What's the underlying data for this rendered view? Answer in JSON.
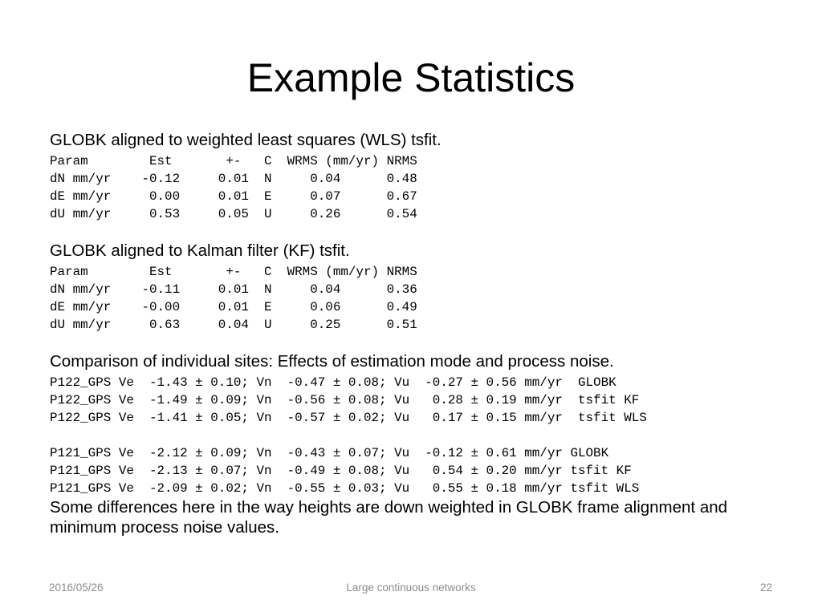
{
  "slide": {
    "title": "Example Statistics",
    "sections": {
      "wls": {
        "heading": "GLOBK aligned to weighted least squares (WLS) tsfit.",
        "table": "Param        Est       +-   C  WRMS (mm/yr) NRMS\ndN mm/yr    -0.12     0.01  N     0.04      0.48\ndE mm/yr     0.00     0.01  E     0.07      0.67\ndU mm/yr     0.53     0.05  U     0.26      0.54"
      },
      "kf": {
        "heading": "GLOBK aligned to Kalman filter (KF) tsfit.",
        "table": "Param        Est       +-   C  WRMS (mm/yr) NRMS\ndN mm/yr    -0.11     0.01  N     0.04      0.36\ndE mm/yr    -0.00     0.01  E     0.06      0.49\ndU mm/yr     0.63     0.04  U     0.25      0.51"
      },
      "comparison": {
        "heading": "Comparison of individual sites: Effects of estimation mode and process noise.",
        "p122": "P122_GPS Ve  -1.43 ± 0.10; Vn  -0.47 ± 0.08; Vu  -0.27 ± 0.56 mm/yr  GLOBK\nP122_GPS Ve  -1.49 ± 0.09; Vn  -0.56 ± 0.08; Vu   0.28 ± 0.19 mm/yr  tsfit KF\nP122_GPS Ve  -1.41 ± 0.05; Vn  -0.57 ± 0.02; Vu   0.17 ± 0.15 mm/yr  tsfit WLS",
        "p121": "P121_GPS Ve  -2.12 ± 0.09; Vn  -0.43 ± 0.07; Vu  -0.12 ± 0.61 mm/yr GLOBK\nP121_GPS Ve  -2.13 ± 0.07; Vn  -0.49 ± 0.08; Vu   0.54 ± 0.20 mm/yr tsfit KF\nP121_GPS Ve  -2.09 ± 0.02; Vn  -0.55 ± 0.03; Vu   0.55 ± 0.18 mm/yr tsfit WLS",
        "note": "Some differences here in the way heights are down weighted in GLOBK frame alignment and minimum process noise values."
      }
    }
  },
  "footer": {
    "date": "2016/05/26",
    "center": "Large continuous networks",
    "page": "22"
  },
  "colors": {
    "text": "#000000",
    "footer_text": "#8c8c8c",
    "background": "#ffffff"
  }
}
